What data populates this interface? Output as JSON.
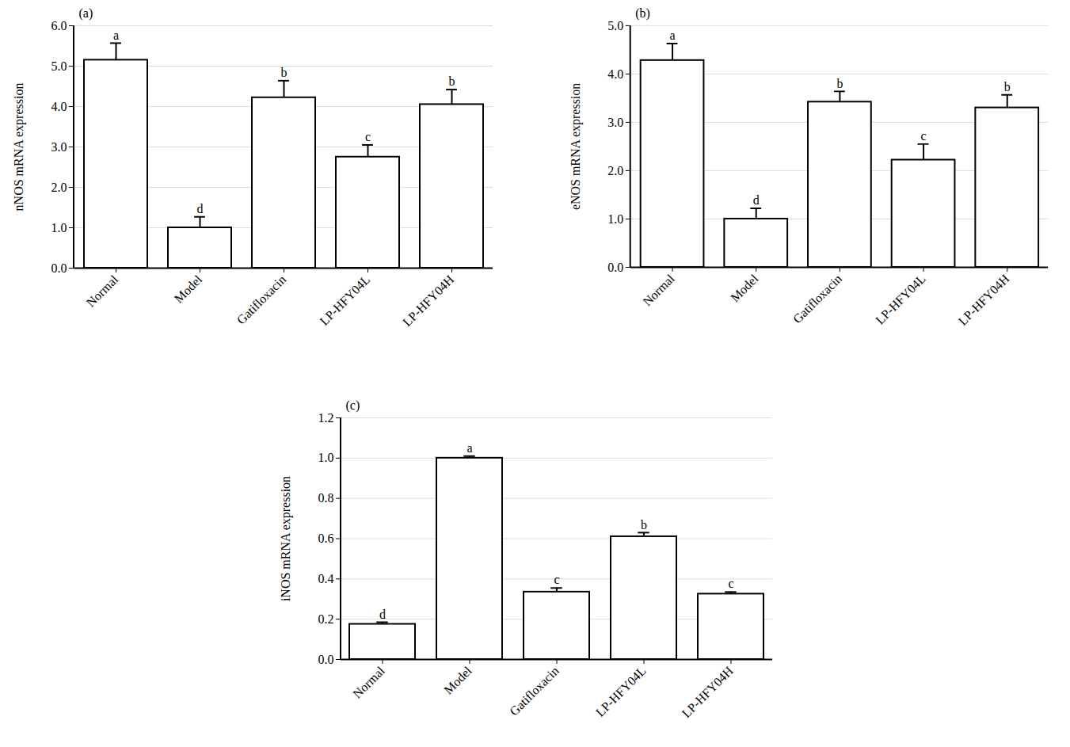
{
  "chart_data": [
    {
      "type": "bar",
      "title": "(a)",
      "y_label": "nNOS mRNA expression",
      "categories": [
        "Normal",
        "Model",
        "Gatifloxacin",
        "LP-HFY04L",
        "LP-HFY04H"
      ],
      "values": [
        5.15,
        1.0,
        4.22,
        2.75,
        4.05
      ],
      "errors": [
        0.42,
        0.27,
        0.42,
        0.3,
        0.37
      ],
      "annotations": [
        "a",
        "d",
        "b",
        "c",
        "b"
      ],
      "color": "#ffffff",
      "ylim": [
        0,
        6
      ],
      "yticks": [
        {
          "value": 0,
          "label": "0.0"
        },
        {
          "value": 1,
          "label": "1.0"
        },
        {
          "value": 2,
          "label": "2.0"
        },
        {
          "value": 3,
          "label": "3.0"
        },
        {
          "value": 4,
          "label": "4.0"
        },
        {
          "value": 5,
          "label": "5.0"
        },
        {
          "value": 6,
          "label": "6.0"
        }
      ],
      "grid": true
    },
    {
      "type": "bar",
      "title": "(b)",
      "y_label": "eNOS mRNA expression",
      "categories": [
        "Normal",
        "Model",
        "Gatifloxacin",
        "LP-HFY04L",
        "LP-HFY04H"
      ],
      "values": [
        4.28,
        1.0,
        3.42,
        2.22,
        3.3
      ],
      "errors": [
        0.35,
        0.22,
        0.22,
        0.33,
        0.27
      ],
      "annotations": [
        "a",
        "d",
        "b",
        "c",
        "b"
      ],
      "color": "#ffffff",
      "ylim": [
        0,
        5
      ],
      "yticks": [
        {
          "value": 0,
          "label": "0.0"
        },
        {
          "value": 1,
          "label": "1.0"
        },
        {
          "value": 2,
          "label": "2.0"
        },
        {
          "value": 3,
          "label": "3.0"
        },
        {
          "value": 4,
          "label": "4.0"
        },
        {
          "value": 5,
          "label": "5.0"
        }
      ],
      "grid": true
    },
    {
      "type": "bar",
      "title": "(c)",
      "y_label": "iNOS mRNA expression",
      "categories": [
        "Normal",
        "Model",
        "Gatifloxacin",
        "LP-HFY04L",
        "LP-HFY04H"
      ],
      "values": [
        0.175,
        1.0,
        0.335,
        0.61,
        0.325
      ],
      "errors": [
        0.01,
        0.01,
        0.02,
        0.02,
        0.01
      ],
      "annotations": [
        "d",
        "a",
        "c",
        "b",
        "c"
      ],
      "color": "#ffffff",
      "ylim": [
        0,
        1.2
      ],
      "yticks": [
        {
          "value": 0,
          "label": "0.0"
        },
        {
          "value": 0.2,
          "label": "0.2"
        },
        {
          "value": 0.4,
          "label": "0.4"
        },
        {
          "value": 0.6,
          "label": "0.6"
        },
        {
          "value": 0.8,
          "label": "0.8"
        },
        {
          "value": 1.0,
          "label": "1.0"
        },
        {
          "value": 1.2,
          "label": "1.2"
        }
      ],
      "grid": true
    }
  ]
}
